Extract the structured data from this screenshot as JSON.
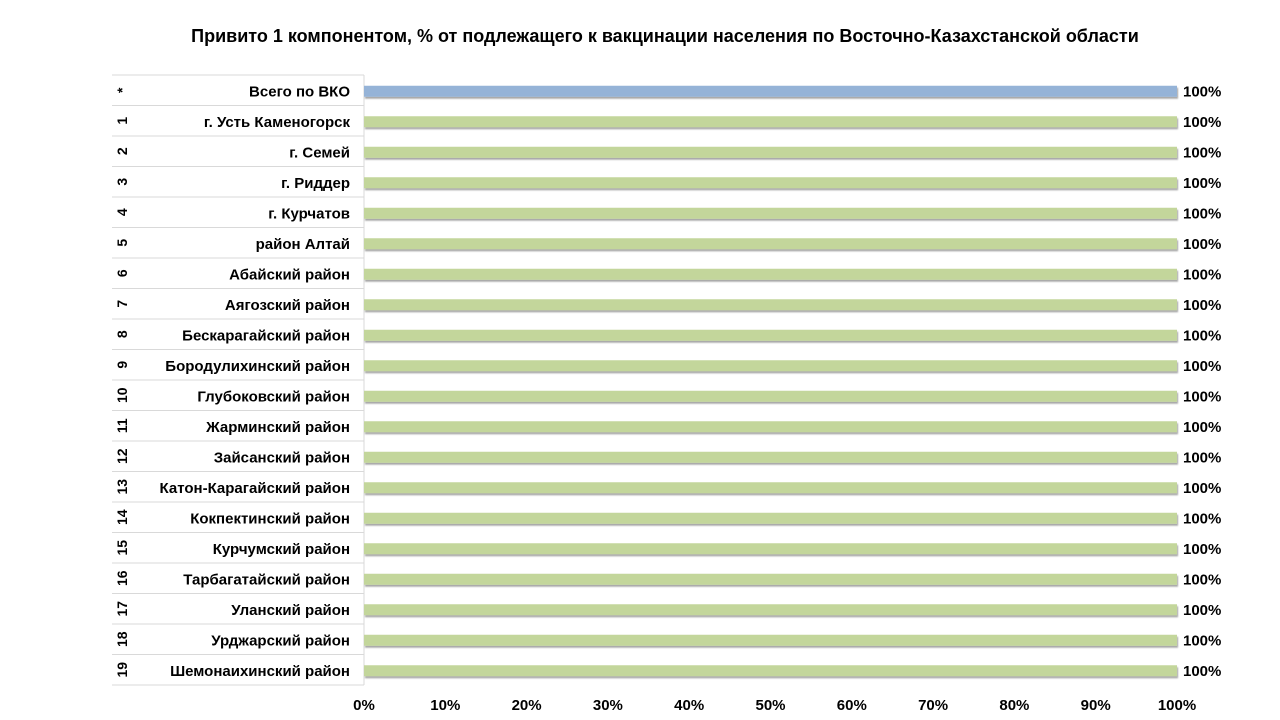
{
  "chart_data": {
    "type": "bar",
    "orientation": "horizontal",
    "title": "Привито 1 компонентом,  % от подлежащего к вакцинации населения по Восточно-Казахстанской области",
    "xlabel": "",
    "ylabel": "",
    "xlim": [
      0,
      100
    ],
    "grid": false,
    "legend": "none",
    "x_ticks": [
      "0%",
      "10%",
      "20%",
      "30%",
      "40%",
      "50%",
      "60%",
      "70%",
      "80%",
      "90%",
      "100%"
    ],
    "indices": [
      "*",
      "1",
      "2",
      "3",
      "4",
      "5",
      "6",
      "7",
      "8",
      "9",
      "10",
      "11",
      "12",
      "13",
      "14",
      "15",
      "16",
      "17",
      "18",
      "19"
    ],
    "categories": [
      "Всего по ВКО",
      "г. Усть Каменогорск",
      "г. Семей",
      "г. Риддер",
      "г. Курчатов",
      "район Алтай",
      "Абайский район",
      "Аягозский район",
      "Бескарагайский район",
      "Бородулихинский район",
      "Глубоковский район",
      "Жарминский район",
      "Зайсанский район",
      "Катон-Карагайский район",
      "Кокпектинский район",
      "Курчумский район",
      "Тарбагатайский район",
      "Уланский район",
      "Урджарский район",
      "Шемонаихинский район"
    ],
    "values": [
      100,
      100,
      100,
      100,
      100,
      100,
      100,
      100,
      100,
      100,
      100,
      100,
      100,
      100,
      100,
      100,
      100,
      100,
      100,
      100
    ],
    "value_labels": [
      "100%",
      "100%",
      "100%",
      "100%",
      "100%",
      "100%",
      "100%",
      "100%",
      "100%",
      "100%",
      "100%",
      "100%",
      "100%",
      "100%",
      "100%",
      "100%",
      "100%",
      "100%",
      "100%",
      "100%"
    ],
    "colors": {
      "total_bar": "#95b3d7",
      "region_bar": "#c3d69b",
      "row_line": "#d9d9d9"
    }
  }
}
